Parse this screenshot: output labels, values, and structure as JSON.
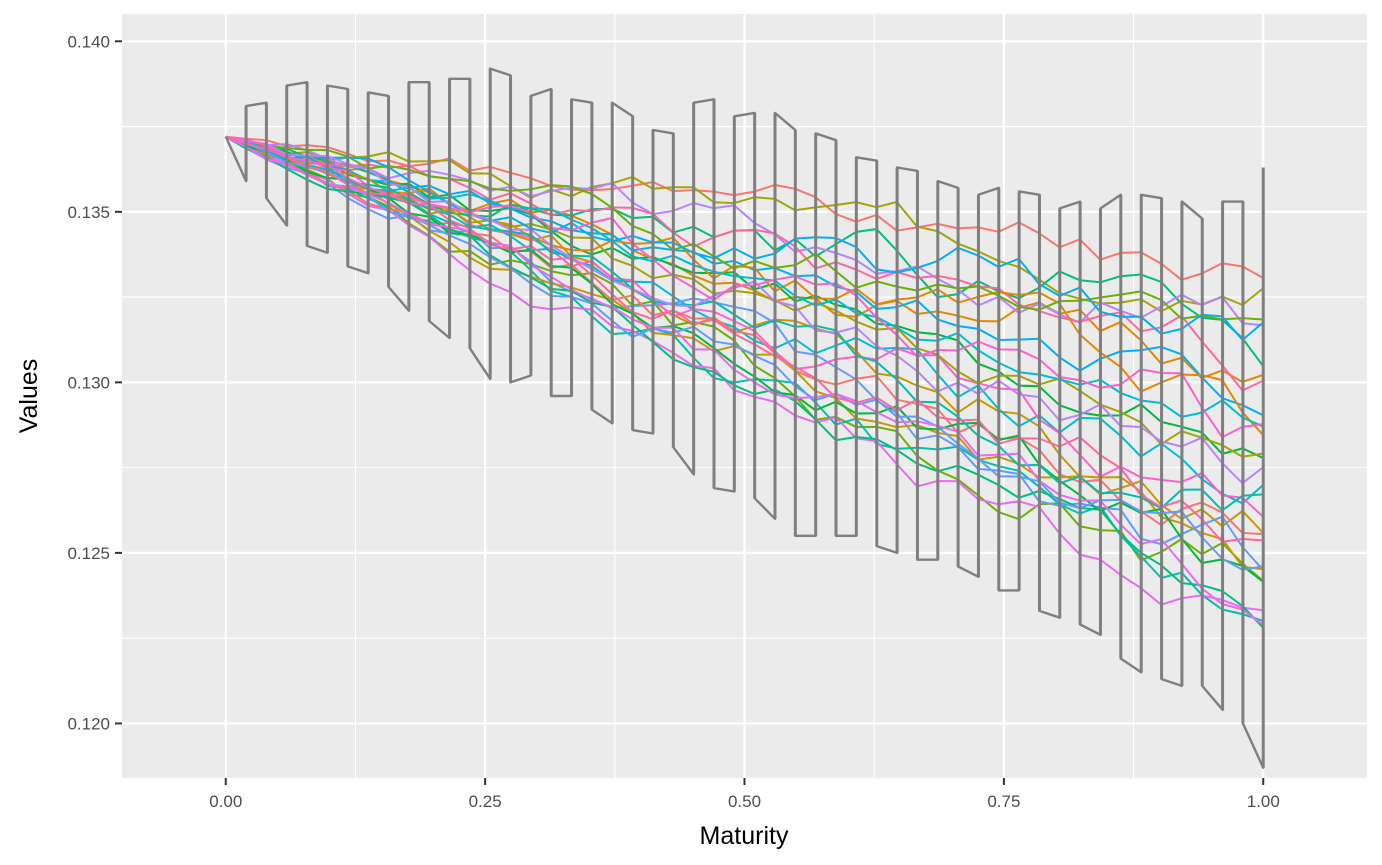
{
  "chart_data": {
    "type": "line",
    "title": "",
    "xlabel": "Maturity",
    "ylabel": "Values",
    "xlim": [
      -0.1,
      1.1
    ],
    "ylim": [
      0.1184,
      0.1408
    ],
    "x_ticks": [
      0.0,
      0.25,
      0.5,
      0.75,
      1.0
    ],
    "x_tick_labels": [
      "0.00",
      "0.25",
      "0.50",
      "0.75",
      "1.00"
    ],
    "y_ticks": [
      0.12,
      0.125,
      0.13,
      0.135,
      0.14
    ],
    "y_tick_labels": [
      "0.120",
      "0.125",
      "0.130",
      "0.135",
      "0.140"
    ],
    "grid": true,
    "legend": "none",
    "n_points": 52,
    "x_step": 0.0196,
    "start_value": 0.1372,
    "colors": [
      "#F8766D",
      "#E58700",
      "#C99800",
      "#A3A500",
      "#6BB100",
      "#00BA38",
      "#00BF7D",
      "#00C0AF",
      "#00BCD8",
      "#00B0F6",
      "#619CFF",
      "#B983FF",
      "#E76BF3",
      "#FD61D1",
      "#FF67A4"
    ],
    "band_color": "#7F7F7F",
    "band": {
      "x": [
        0.0196,
        0.0392,
        0.0588,
        0.0784,
        0.098,
        0.1176,
        0.1373,
        0.1569,
        0.1765,
        0.1961,
        0.2157,
        0.2353,
        0.2549,
        0.2745,
        0.2941,
        0.3137,
        0.3333,
        0.3529,
        0.3725,
        0.3922,
        0.4118,
        0.4314,
        0.451,
        0.4706,
        0.4902,
        0.5098,
        0.5294,
        0.549,
        0.5686,
        0.5882,
        0.6078,
        0.6275,
        0.6471,
        0.6667,
        0.6863,
        0.7059,
        0.7255,
        0.7451,
        0.7647,
        0.7843,
        0.8039,
        0.8235,
        0.8431,
        0.8627,
        0.8824,
        0.902,
        0.9216,
        0.9412,
        0.9608,
        0.9804,
        1.0
      ],
      "low": [
        0.1359,
        0.1354,
        0.1346,
        0.134,
        0.1338,
        0.1334,
        0.1332,
        0.1328,
        0.1321,
        0.1318,
        0.1313,
        0.131,
        0.1301,
        0.13,
        0.1302,
        0.1296,
        0.1296,
        0.1292,
        0.1288,
        0.1286,
        0.1285,
        0.1281,
        0.1273,
        0.1269,
        0.1268,
        0.1266,
        0.126,
        0.1255,
        0.1255,
        0.1255,
        0.1255,
        0.1252,
        0.125,
        0.1248,
        0.1248,
        0.1246,
        0.1243,
        0.1239,
        0.1239,
        0.1233,
        0.1231,
        0.1229,
        0.1226,
        0.1219,
        0.1215,
        0.1213,
        0.1211,
        0.1211,
        0.1204,
        0.12,
        0.1187
      ],
      "high": [
        0.1381,
        0.1382,
        0.1387,
        0.1388,
        0.1387,
        0.1386,
        0.1385,
        0.1384,
        0.1388,
        0.1388,
        0.1389,
        0.1389,
        0.1392,
        0.139,
        0.1384,
        0.1386,
        0.1383,
        0.1382,
        0.1382,
        0.1378,
        0.1374,
        0.1373,
        0.1382,
        0.1383,
        0.1378,
        0.1379,
        0.1379,
        0.1374,
        0.1373,
        0.1371,
        0.1366,
        0.1365,
        0.1363,
        0.1362,
        0.1359,
        0.1357,
        0.1355,
        0.1357,
        0.1356,
        0.1355,
        0.1351,
        0.1353,
        0.1351,
        0.1355,
        0.1355,
        0.1354,
        0.1353,
        0.1348,
        0.1353,
        0.1353,
        0.1363
      ]
    },
    "series": [
      {
        "end": 0.1331,
        "dev": 0.0012
      },
      {
        "end": 0.13,
        "dev": 0.0014
      },
      {
        "end": 0.1265,
        "dev": 0.0016
      },
      {
        "end": 0.1325,
        "dev": 0.0013
      },
      {
        "end": 0.124,
        "dev": 0.0015
      },
      {
        "end": 0.1283,
        "dev": 0.0012
      },
      {
        "end": 0.131,
        "dev": 0.0017
      },
      {
        "end": 0.1235,
        "dev": 0.0013
      },
      {
        "end": 0.1273,
        "dev": 0.0014
      },
      {
        "end": 0.1295,
        "dev": 0.0012
      },
      {
        "end": 0.1247,
        "dev": 0.0016
      },
      {
        "end": 0.1318,
        "dev": 0.0013
      },
      {
        "end": 0.1228,
        "dev": 0.0012
      },
      {
        "end": 0.1268,
        "dev": 0.0015
      },
      {
        "end": 0.1302,
        "dev": 0.0014
      },
      {
        "end": 0.1255,
        "dev": 0.0013
      },
      {
        "end": 0.1288,
        "dev": 0.0016
      },
      {
        "end": 0.1242,
        "dev": 0.0012
      },
      {
        "end": 0.1278,
        "dev": 0.0014
      },
      {
        "end": 0.1306,
        "dev": 0.0013
      },
      {
        "end": 0.1251,
        "dev": 0.0015
      },
      {
        "end": 0.1232,
        "dev": 0.0013
      },
      {
        "end": 0.1262,
        "dev": 0.0014
      },
      {
        "end": 0.1292,
        "dev": 0.0012
      },
      {
        "end": 0.1314,
        "dev": 0.0015
      },
      {
        "end": 0.1245,
        "dev": 0.0013
      },
      {
        "end": 0.1275,
        "dev": 0.0014
      },
      {
        "end": 0.1238,
        "dev": 0.0012
      },
      {
        "end": 0.1285,
        "dev": 0.0016
      },
      {
        "end": 0.1258,
        "dev": 0.0013
      }
    ]
  }
}
